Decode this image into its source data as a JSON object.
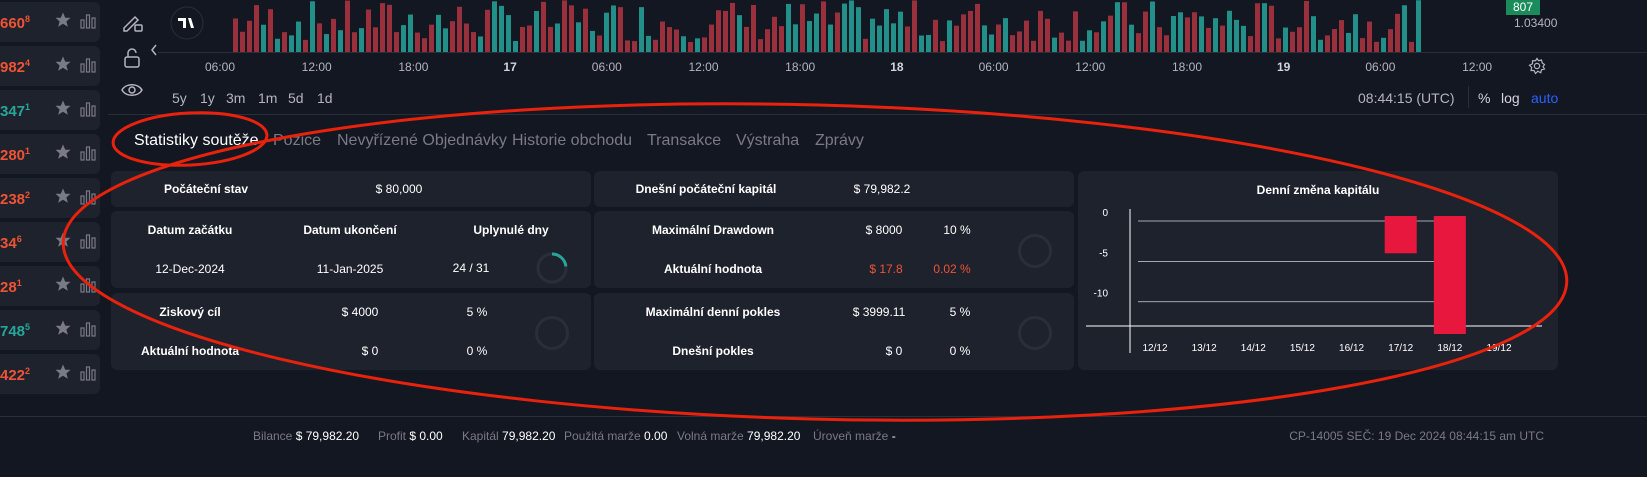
{
  "watchlist": [
    {
      "value": "660",
      "sup": "8",
      "color": "red"
    },
    {
      "value": "982",
      "sup": "4",
      "color": "red"
    },
    {
      "value": "347",
      "sup": "1",
      "color": "green"
    },
    {
      "value": "280",
      "sup": "1",
      "color": "red"
    },
    {
      "value": "238",
      "sup": "2",
      "color": "red"
    },
    {
      "value": "34",
      "sup": "6",
      "color": "red"
    },
    {
      "value": "28",
      "sup": "1",
      "color": "red"
    },
    {
      "value": "748",
      "sup": "5",
      "color": "green"
    },
    {
      "value": "422",
      "sup": "2",
      "color": "red"
    }
  ],
  "chart": {
    "price_badge": "807",
    "price_label": "1.03400",
    "time_labels": [
      {
        "t": "06:00",
        "b": false
      },
      {
        "t": "12:00",
        "b": false
      },
      {
        "t": "18:00",
        "b": false
      },
      {
        "t": "17",
        "b": true
      },
      {
        "t": "06:00",
        "b": false
      },
      {
        "t": "12:00",
        "b": false
      },
      {
        "t": "18:00",
        "b": false
      },
      {
        "t": "18",
        "b": true
      },
      {
        "t": "06:00",
        "b": false
      },
      {
        "t": "12:00",
        "b": false
      },
      {
        "t": "18:00",
        "b": false
      },
      {
        "t": "19",
        "b": true
      },
      {
        "t": "06:00",
        "b": false
      },
      {
        "t": "12:00",
        "b": false
      }
    ],
    "ranges": [
      "5y",
      "1y",
      "3m",
      "1m",
      "5d",
      "1d"
    ],
    "clock": "08:44:15 (UTC)",
    "scale_pct": "%",
    "scale_log": "log",
    "scale_auto": "auto"
  },
  "tabs": [
    "Statistiky soutěže",
    "Pozice",
    "Nevyřízené Objednávky",
    "Historie obchodu",
    "Transakce",
    "Výstraha",
    "Zprávy"
  ],
  "stats": {
    "start_state_label": "Počáteční stav",
    "start_state_value": "$ 80,000",
    "start_date_label": "Datum začátku",
    "end_date_label": "Datum ukončení",
    "elapsed_label": "Uplynulé dny",
    "start_date": "12-Dec-2024",
    "end_date": "11-Jan-2025",
    "elapsed": "24 / 31",
    "elapsed_fraction": 0.774,
    "profit_target_label": "Ziskový cíl",
    "profit_target_value": "$ 4000",
    "profit_target_pct": "5 %",
    "current_value_label": "Aktuální hodnota",
    "current_value": "$ 0",
    "current_pct": "0 %",
    "today_capital_label": "Dnešní počáteční kapitál",
    "today_capital_value": "$ 79,982.2",
    "max_dd_label": "Maximální Drawdown",
    "max_dd_value": "$ 8000",
    "max_dd_pct": "10 %",
    "dd_current_label": "Aktuální hodnota",
    "dd_current_value": "$ 17.8",
    "dd_current_pct": "0.02 %",
    "max_daily_label": "Maximální denní pokles",
    "max_daily_value": "$ 3999.11",
    "max_daily_pct": "5 %",
    "today_loss_label": "Dnešní pokles",
    "today_loss_value": "$ 0",
    "today_loss_pct": "0 %"
  },
  "chart_data": {
    "type": "bar",
    "title": "Denní změna kapitálu",
    "categories": [
      "12/12",
      "13/12",
      "14/12",
      "15/12",
      "16/12",
      "17/12",
      "18/12",
      "19/12"
    ],
    "values": [
      0,
      0,
      0,
      0,
      0,
      -4,
      -14,
      0
    ],
    "yticks": [
      0,
      -5,
      -10
    ],
    "ylim": [
      -14,
      0
    ],
    "grid": true,
    "bar_color": "#e8173e"
  },
  "status": {
    "balance_label": "Bilance",
    "balance": "$ 79,982.20",
    "profit_label": "Profit",
    "profit": "$ 0.00",
    "capital_label": "Kapitál",
    "capital": "79,982.20",
    "used_margin_label": "Použitá marže",
    "used_margin": "0.00",
    "free_margin_label": "Volná marže",
    "free_margin": "79,982.20",
    "margin_level_label": "Úroveň marže",
    "margin_level": "-",
    "server_info": "CP-14005 SEČ: 19 Dec 2024 08:44:15 am UTC"
  }
}
